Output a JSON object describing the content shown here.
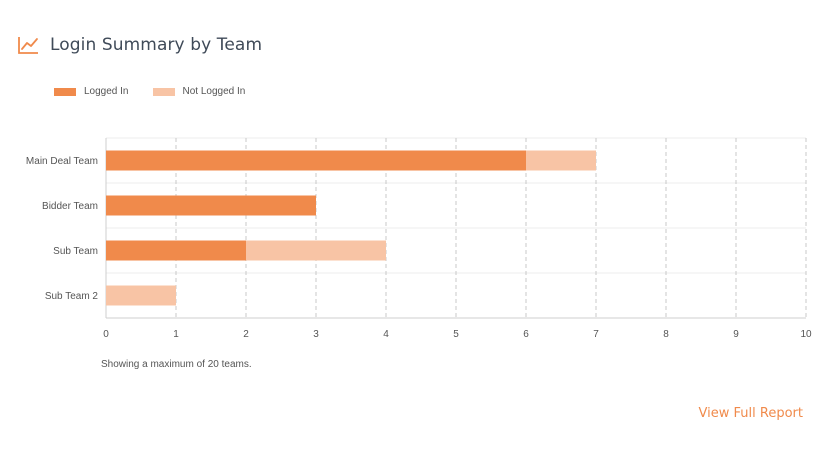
{
  "header": {
    "title": "Login Summary by Team",
    "icon": "line-chart-icon"
  },
  "colors": {
    "logged_in": "#f08a4b",
    "not_logged_in": "#f8c4a5",
    "accent": "#f08a4b"
  },
  "chart_data": {
    "type": "bar",
    "orientation": "horizontal",
    "stacked": true,
    "categories": [
      "Main Deal Team",
      "Bidder Team",
      "Sub Team",
      "Sub Team 2"
    ],
    "series": [
      {
        "name": "Logged In",
        "values": [
          6,
          3,
          2,
          0
        ]
      },
      {
        "name": "Not Logged In",
        "values": [
          1,
          0,
          2,
          1
        ]
      }
    ],
    "xlim": [
      0,
      10
    ],
    "xticks": [
      "0",
      "1",
      "2",
      "3",
      "4",
      "5",
      "6",
      "7",
      "8",
      "9",
      "10"
    ],
    "legend": "top-left",
    "grid": true
  },
  "note": "Showing a maximum of 20 teams.",
  "link": {
    "label": "View Full Report"
  }
}
